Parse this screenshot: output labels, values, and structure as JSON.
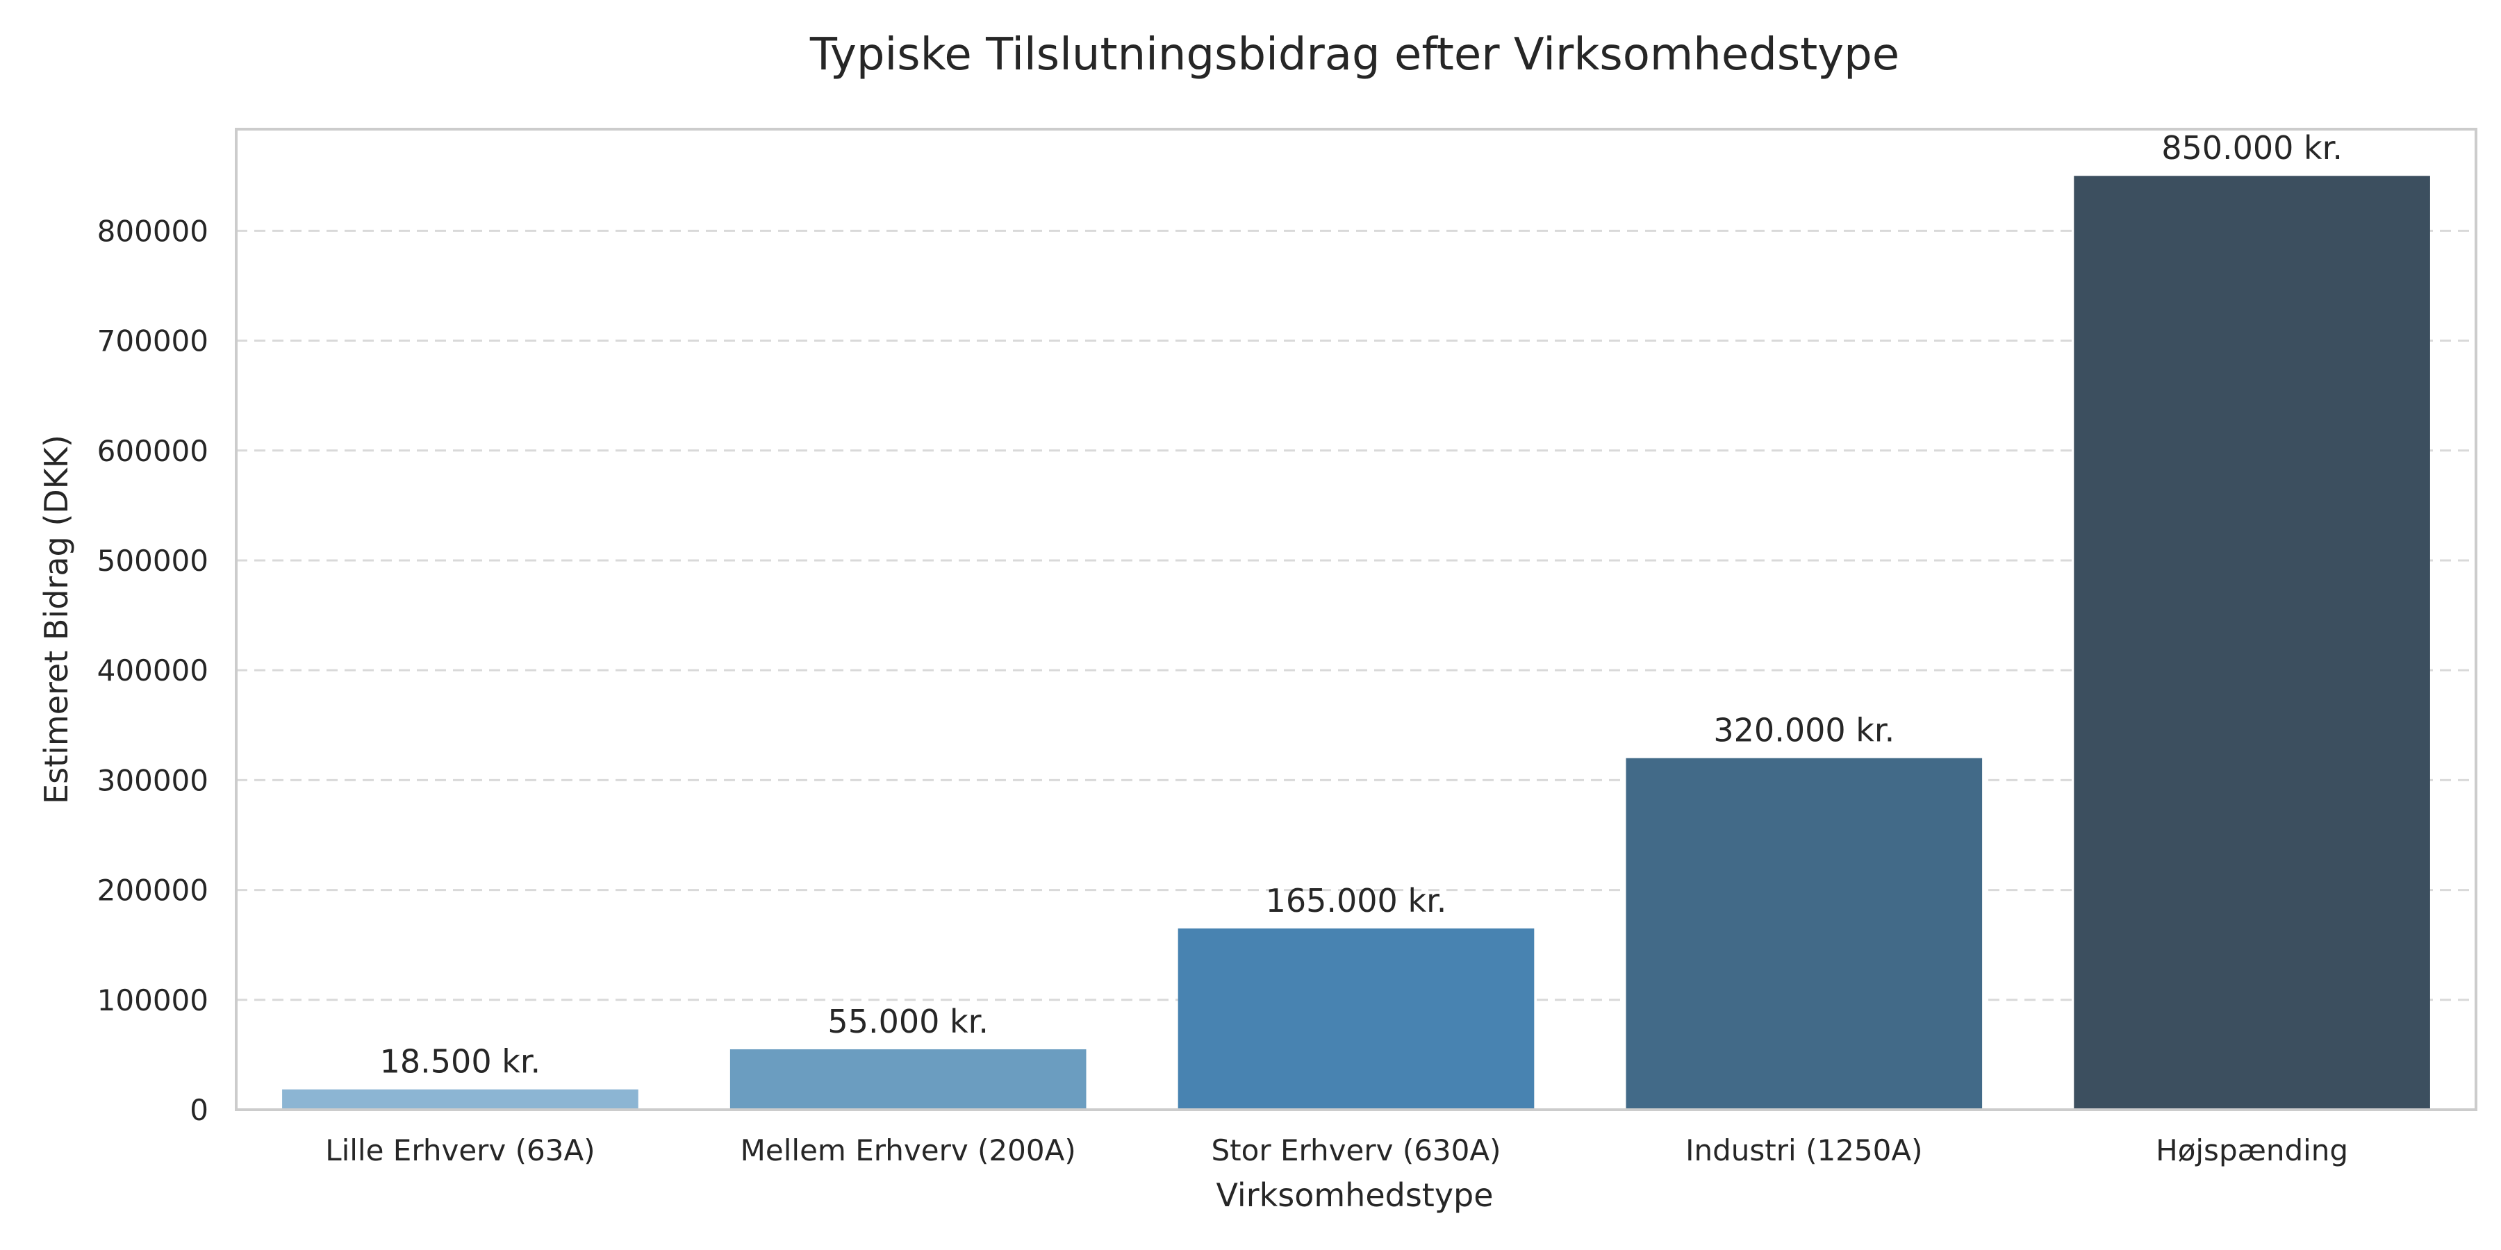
{
  "chart_data": {
    "type": "bar",
    "title": "Typiske Tilslutningsbidrag efter Virksomhedstype",
    "xlabel": "Virksomhedstype",
    "ylabel": "Estimeret Bidrag (DKK)",
    "categories": [
      "Lille Erhverv (63A)",
      "Mellem Erhverv (200A)",
      "Stor Erhverv (630A)",
      "Industri (1250A)",
      "Højspænding"
    ],
    "values": [
      18500,
      55000,
      165000,
      320000,
      850000
    ],
    "data_labels": [
      "18.500 kr.",
      "55.000 kr.",
      "165.000 kr.",
      "320.000 kr.",
      "850.000 kr."
    ],
    "colors": [
      "#8cb5d3",
      "#6b9dc0",
      "#4883b1",
      "#426a88",
      "#3c4f5f"
    ],
    "yticks": [
      0,
      100000,
      200000,
      300000,
      400000,
      500000,
      600000,
      700000,
      800000
    ],
    "ytick_labels": [
      "0",
      "100000",
      "200000",
      "300000",
      "400000",
      "500000",
      "600000",
      "700000",
      "800000"
    ],
    "ylim": [
      0,
      892500
    ],
    "grid": true,
    "legend": false
  }
}
